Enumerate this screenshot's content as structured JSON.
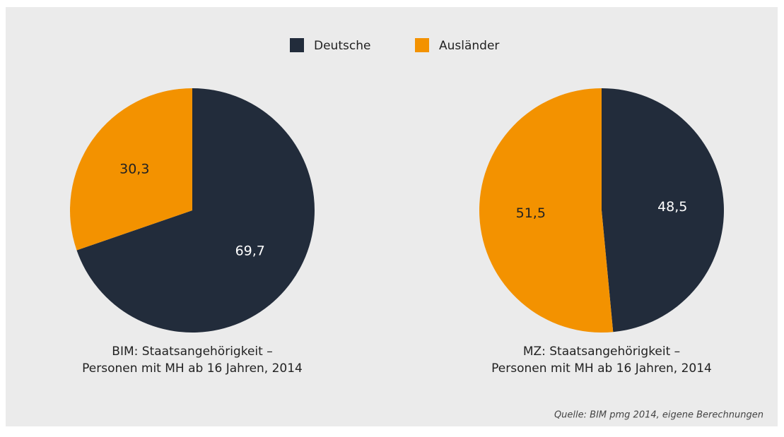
{
  "legend": {
    "labels": [
      "Deutsche",
      "Ausländer"
    ],
    "colors": [
      "#222c3b",
      "#f39200"
    ]
  },
  "chart_data": [
    {
      "type": "pie",
      "title": [
        "BIM: Staatsangehörigkeit –",
        "Personen mit MH ab 16 Jahren, 2014"
      ],
      "values": [
        69.7,
        30.3
      ],
      "value_labels": [
        "69,7",
        "30,3"
      ]
    },
    {
      "type": "pie",
      "title": [
        "MZ: Staatsangehörigkeit –",
        "Personen mit MH ab 16 Jahren, 2014"
      ],
      "values": [
        48.5,
        51.5
      ],
      "value_labels": [
        "48,5",
        "51,5"
      ]
    }
  ],
  "source": "Quelle: BIM pmg 2014, eigene Berechnungen"
}
